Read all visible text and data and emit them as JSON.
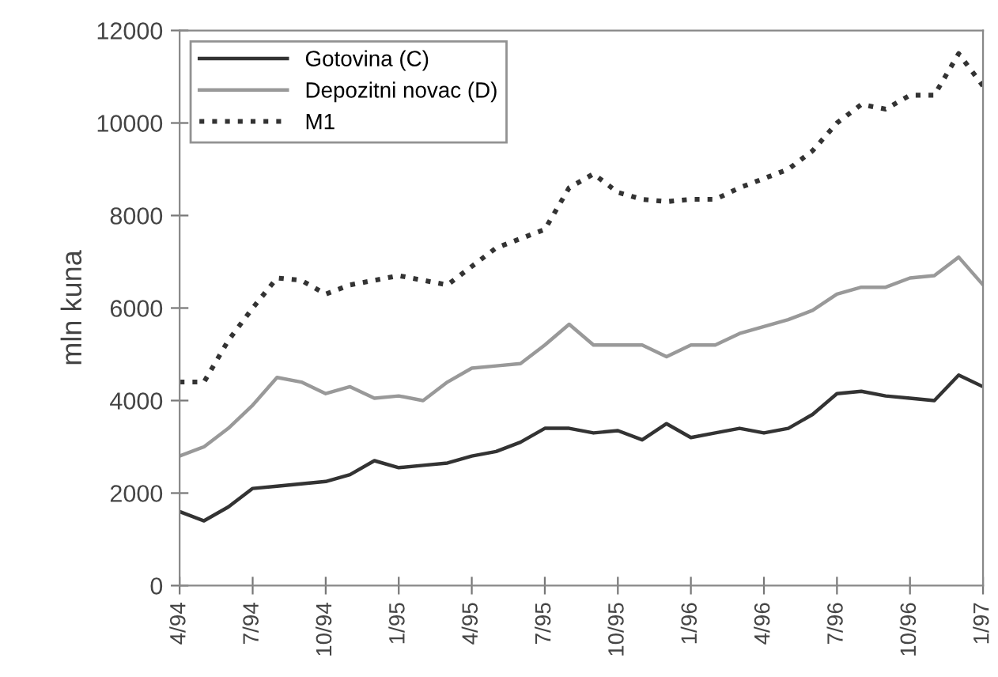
{
  "chart_data": {
    "type": "line",
    "ylabel": "mln kuna",
    "categories": [
      "4/94",
      null,
      null,
      "7/94",
      null,
      null,
      "10/94",
      null,
      null,
      "1/95",
      null,
      null,
      "4/95",
      null,
      null,
      "7/95",
      null,
      null,
      "10/95",
      null,
      null,
      "1/96",
      null,
      null,
      "4/96",
      null,
      null,
      "7/96",
      null,
      null,
      "10/96",
      null,
      null,
      "1/97"
    ],
    "series": [
      {
        "name": "Gotovina (C)",
        "color": "#333333",
        "line_style": "solid",
        "values": [
          1600,
          1400,
          1700,
          2100,
          2150,
          2200,
          2250,
          2400,
          2700,
          2550,
          2600,
          2650,
          2800,
          2900,
          3100,
          3400,
          3400,
          3300,
          3350,
          3150,
          3500,
          3200,
          3300,
          3400,
          3300,
          3400,
          3700,
          4150,
          4200,
          4100,
          4050,
          4000,
          4550,
          4300
        ]
      },
      {
        "name": "Depozitni novac (D)",
        "color": "#999999",
        "line_style": "solid",
        "values": [
          2800,
          3000,
          3400,
          3900,
          4500,
          4400,
          4150,
          4300,
          4050,
          4100,
          4000,
          4400,
          4700,
          4750,
          4800,
          5200,
          5650,
          5200,
          5200,
          5200,
          4950,
          5200,
          5200,
          5450,
          5600,
          5750,
          5950,
          6300,
          6450,
          6450,
          6650,
          6700,
          7100,
          6500
        ]
      },
      {
        "name": "M1",
        "color": "#333333",
        "line_style": "dotted",
        "values": [
          4400,
          4400,
          5300,
          6000,
          6650,
          6600,
          6300,
          6500,
          6600,
          6700,
          6600,
          6500,
          6900,
          7300,
          7500,
          7700,
          8600,
          8900,
          8500,
          8350,
          8300,
          8350,
          8350,
          8600,
          8800,
          9000,
          9400,
          10000,
          10400,
          10300,
          10600,
          10600,
          11500,
          10800
        ]
      }
    ],
    "ylim": [
      0,
      12000
    ],
    "yticks": [
      0,
      2000,
      4000,
      6000,
      8000,
      10000,
      12000
    ],
    "legend": "top left",
    "grid": false
  }
}
